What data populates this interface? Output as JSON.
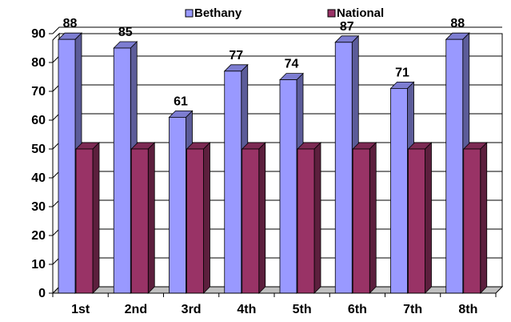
{
  "chart_data": {
    "type": "bar",
    "title": "",
    "xlabel": "",
    "ylabel": "",
    "categories": [
      "1st",
      "2nd",
      "3rd",
      "4th",
      "5th",
      "6th",
      "7th",
      "8th"
    ],
    "series": [
      {
        "name": "Bethany",
        "values": [
          88,
          85,
          61,
          77,
          74,
          87,
          71,
          88
        ],
        "color": "#9999ff"
      },
      {
        "name": "National",
        "values": [
          50,
          50,
          50,
          50,
          50,
          50,
          50,
          50
        ],
        "color": "#993366"
      }
    ],
    "data_labels_series": "Bethany",
    "ylim": [
      0,
      90
    ],
    "yticks": [
      "0",
      "10",
      "20",
      "30",
      "40",
      "50",
      "60",
      "70",
      "80",
      "90"
    ],
    "grid": true,
    "style": "3d-column",
    "legend_position": "top"
  }
}
